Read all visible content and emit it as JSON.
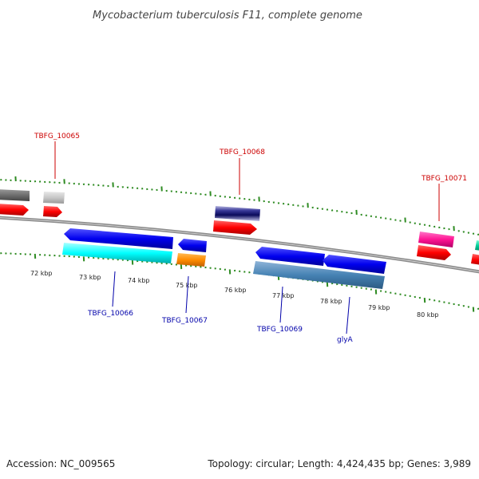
{
  "title": "Mycobacterium tuberculosis F11, complete genome",
  "footer": {
    "accession": "Accession: NC_009565",
    "summary": "Topology: circular; Length: 4,424,435 bp; Genes: 3,989"
  },
  "colors": {
    "backbone": "#8a8a8a",
    "tick": "#2e8b22",
    "label_forward": "#cc0000",
    "label_reverse": "#0000aa"
  },
  "scale_labels": [
    "72 kbp",
    "73 kbp",
    "74 kbp",
    "75 kbp",
    "76 kbp",
    "77 kbp",
    "78 kbp",
    "79 kbp",
    "80 kbp"
  ],
  "gene_labels": {
    "forward": [
      "TBFG_10065",
      "TBFG_10068",
      "TBFG_10071"
    ],
    "reverse": [
      "TBFG_10066",
      "TBFG_10067",
      "TBFG_10069",
      "glyA"
    ]
  },
  "feature_colors": [
    "#6e6e6e",
    "#c8c8c8",
    "#ff0000",
    "#1a1a7a",
    "#ff1493",
    "#00cc99",
    "#0000ee",
    "#00ffff",
    "#ff8c00",
    "#4682b4"
  ]
}
